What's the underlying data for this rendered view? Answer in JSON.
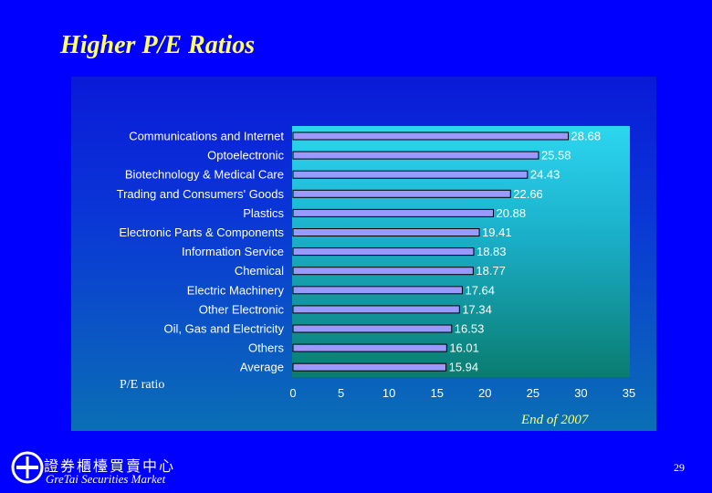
{
  "slide": {
    "title": "Higher P/E Ratios",
    "footnote": "End of 2007",
    "page_number": "29",
    "logo_chinese": "證券櫃檯買賣中心",
    "logo_english": "GreTai Securities Market"
  },
  "chart_data": {
    "type": "bar",
    "orientation": "horizontal",
    "categories": [
      "Communications and Internet",
      "Optoelectronic",
      "Biotechnology & Medical Care",
      "Trading and Consumers' Goods",
      "Plastics",
      "Electronic Parts & Components",
      "Information Service",
      "Chemical",
      "Electric Machinery",
      "Other Electronic",
      "Oil, Gas and Electricity",
      "Others",
      "Average"
    ],
    "values": [
      28.68,
      25.58,
      24.43,
      22.66,
      20.88,
      19.41,
      18.83,
      18.77,
      17.64,
      17.34,
      16.53,
      16.01,
      15.94
    ],
    "value_labels": [
      "28.68",
      "25.58",
      "24.43",
      "22.66",
      "20.88",
      "19.41",
      "18.83",
      "18.77",
      "17.64",
      "17.34",
      "16.53",
      "16.01",
      "15.94"
    ],
    "xlabel": "P/E ratio",
    "xlim": [
      0,
      35
    ],
    "xticks": [
      "0",
      "5",
      "10",
      "15",
      "20",
      "25",
      "30",
      "35"
    ],
    "bar_color": "#9999ff",
    "label_color": "#ffffff",
    "legend": "none",
    "grid": false
  }
}
